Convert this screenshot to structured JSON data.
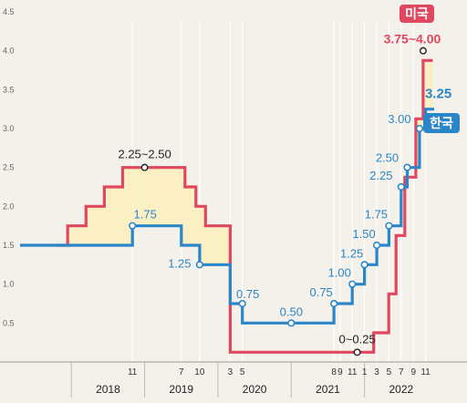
{
  "chart_data": {
    "type": "line",
    "title": "",
    "xlabel": "",
    "ylabel": "",
    "ylim": [
      0,
      4.5
    ],
    "yticks": [
      "0.5",
      "1.0",
      "1.5",
      "2.0",
      "2.5",
      "3.0",
      "3.5",
      "4.0",
      "4.5"
    ],
    "x_month_ticks": [
      {
        "label": "11",
        "t": 2018.833
      },
      {
        "label": "7",
        "t": 2019.5
      },
      {
        "label": "10",
        "t": 2019.75
      },
      {
        "label": "3",
        "t": 2020.167
      },
      {
        "label": "5",
        "t": 2020.333
      },
      {
        "label": "8",
        "t": 2021.583
      },
      {
        "label": "9",
        "t": 2021.667
      },
      {
        "label": "11",
        "t": 2021.833
      },
      {
        "label": "1",
        "t": 2022.0
      },
      {
        "label": "3",
        "t": 2022.167
      },
      {
        "label": "5",
        "t": 2022.333
      },
      {
        "label": "7",
        "t": 2022.5
      },
      {
        "label": "9",
        "t": 2022.667
      },
      {
        "label": "11",
        "t": 2022.833
      }
    ],
    "x_years": [
      {
        "label": "2018",
        "t": 2018.5
      },
      {
        "label": "2019",
        "t": 2019.5
      },
      {
        "label": "2020",
        "t": 2020.5
      },
      {
        "label": "2021",
        "t": 2021.5
      },
      {
        "label": "2022",
        "t": 2022.5
      }
    ],
    "series": [
      {
        "name": "미국",
        "color": "#e0485f",
        "steps": [
          [
            2017.8,
            1.5
          ],
          [
            2017.95,
            1.75
          ],
          [
            2018.2,
            2.0
          ],
          [
            2018.45,
            2.25
          ],
          [
            2018.7,
            2.5
          ],
          [
            2019.55,
            2.25
          ],
          [
            2019.7,
            2.0
          ],
          [
            2019.83,
            1.75
          ],
          [
            2020.167,
            0.125
          ],
          [
            2022.125,
            0.375
          ],
          [
            2022.33,
            0.875
          ],
          [
            2022.43,
            1.625
          ],
          [
            2022.55,
            2.375
          ],
          [
            2022.7,
            3.125
          ],
          [
            2022.8,
            3.875
          ],
          [
            2022.93,
            3.875
          ]
        ],
        "labels": [
          {
            "text": "2.25~2.50",
            "t": 2019.0,
            "v": 2.5,
            "dx": 0,
            "dy": -10
          },
          {
            "text": "0~0.25",
            "t": 2021.9,
            "v": 0.125,
            "dx": 0,
            "dy": -10
          },
          {
            "text": "3.75~4.00",
            "t": 2022.8,
            "v": 4.0,
            "dx": -12,
            "dy": -8
          }
        ]
      },
      {
        "name": "한국",
        "color": "#2b86c9",
        "steps": [
          [
            2017.3,
            1.5
          ],
          [
            2018.833,
            1.75
          ],
          [
            2019.5,
            1.5
          ],
          [
            2019.75,
            1.25
          ],
          [
            2020.167,
            0.75
          ],
          [
            2020.333,
            0.5
          ],
          [
            2021.583,
            0.75
          ],
          [
            2021.833,
            1.0
          ],
          [
            2022.0,
            1.25
          ],
          [
            2022.167,
            1.5
          ],
          [
            2022.333,
            1.75
          ],
          [
            2022.5,
            2.25
          ],
          [
            2022.583,
            2.5
          ],
          [
            2022.75,
            3.0
          ],
          [
            2022.833,
            3.25
          ],
          [
            2022.95,
            3.25
          ]
        ],
        "labels": [
          {
            "text": "1.75",
            "t": 2018.833,
            "v": 1.75,
            "dx": 14,
            "dy": -8
          },
          {
            "text": "1.25",
            "t": 2019.75,
            "v": 1.25,
            "dx": -22,
            "dy": 3
          },
          {
            "text": "0.75",
            "t": 2020.333,
            "v": 0.75,
            "dx": 6,
            "dy": -6
          },
          {
            "text": "0.50",
            "t": 2021.0,
            "v": 0.5,
            "dx": 0,
            "dy": -8
          },
          {
            "text": "0.75",
            "t": 2021.583,
            "v": 0.75,
            "dx": -14,
            "dy": -8
          },
          {
            "text": "1.00",
            "t": 2021.833,
            "v": 1.0,
            "dx": -14,
            "dy": -8
          },
          {
            "text": "1.25",
            "t": 2022.0,
            "v": 1.25,
            "dx": -14,
            "dy": -8
          },
          {
            "text": "1.50",
            "t": 2022.167,
            "v": 1.5,
            "dx": -14,
            "dy": -8
          },
          {
            "text": "1.75",
            "t": 2022.333,
            "v": 1.75,
            "dx": -14,
            "dy": -8
          },
          {
            "text": "2.25",
            "t": 2022.5,
            "v": 2.25,
            "dx": -22,
            "dy": -8
          },
          {
            "text": "2.50",
            "t": 2022.583,
            "v": 2.5,
            "dx": -22,
            "dy": -6
          },
          {
            "text": "3.00",
            "t": 2022.75,
            "v": 3.0,
            "dx": -22,
            "dy": -6
          }
        ],
        "end_label": "3.25"
      }
    ],
    "fill_between_color": "#fbf0c4",
    "grid": "vertical-at-month-ticks"
  }
}
